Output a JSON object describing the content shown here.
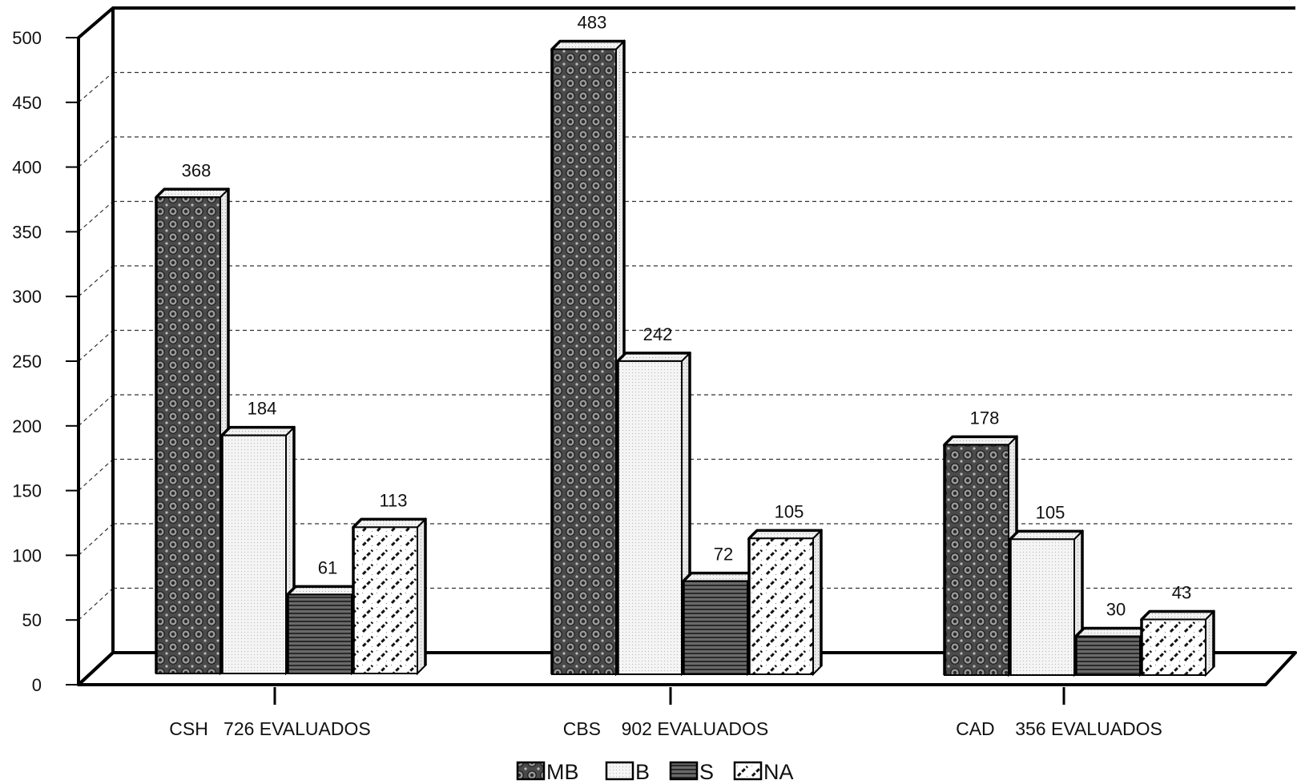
{
  "chart_data": {
    "type": "bar",
    "title": "",
    "xlabel": "",
    "ylabel": "",
    "ylim": [
      0,
      500
    ],
    "yticks": [
      0,
      50,
      100,
      150,
      200,
      250,
      300,
      350,
      400,
      450,
      500
    ],
    "grid": true,
    "legend_position": "bottom-center",
    "three_d": true,
    "categories": [
      "CSH   726 EVALUADOS",
      "CBS    902 EVALUADOS",
      "CAD    356 EVALUADOS"
    ],
    "series": [
      {
        "name": "MB",
        "values": [
          368,
          483,
          178
        ],
        "pattern": "circles",
        "color": "#505050"
      },
      {
        "name": "B",
        "values": [
          184,
          242,
          105
        ],
        "pattern": "dots",
        "color": "#f2f2f2"
      },
      {
        "name": "S",
        "values": [
          61,
          72,
          30
        ],
        "pattern": "hlines",
        "color": "#5a5a5a"
      },
      {
        "name": "NA",
        "values": [
          113,
          105,
          43
        ],
        "pattern": "diagonal",
        "color": "#ffffff"
      }
    ]
  }
}
